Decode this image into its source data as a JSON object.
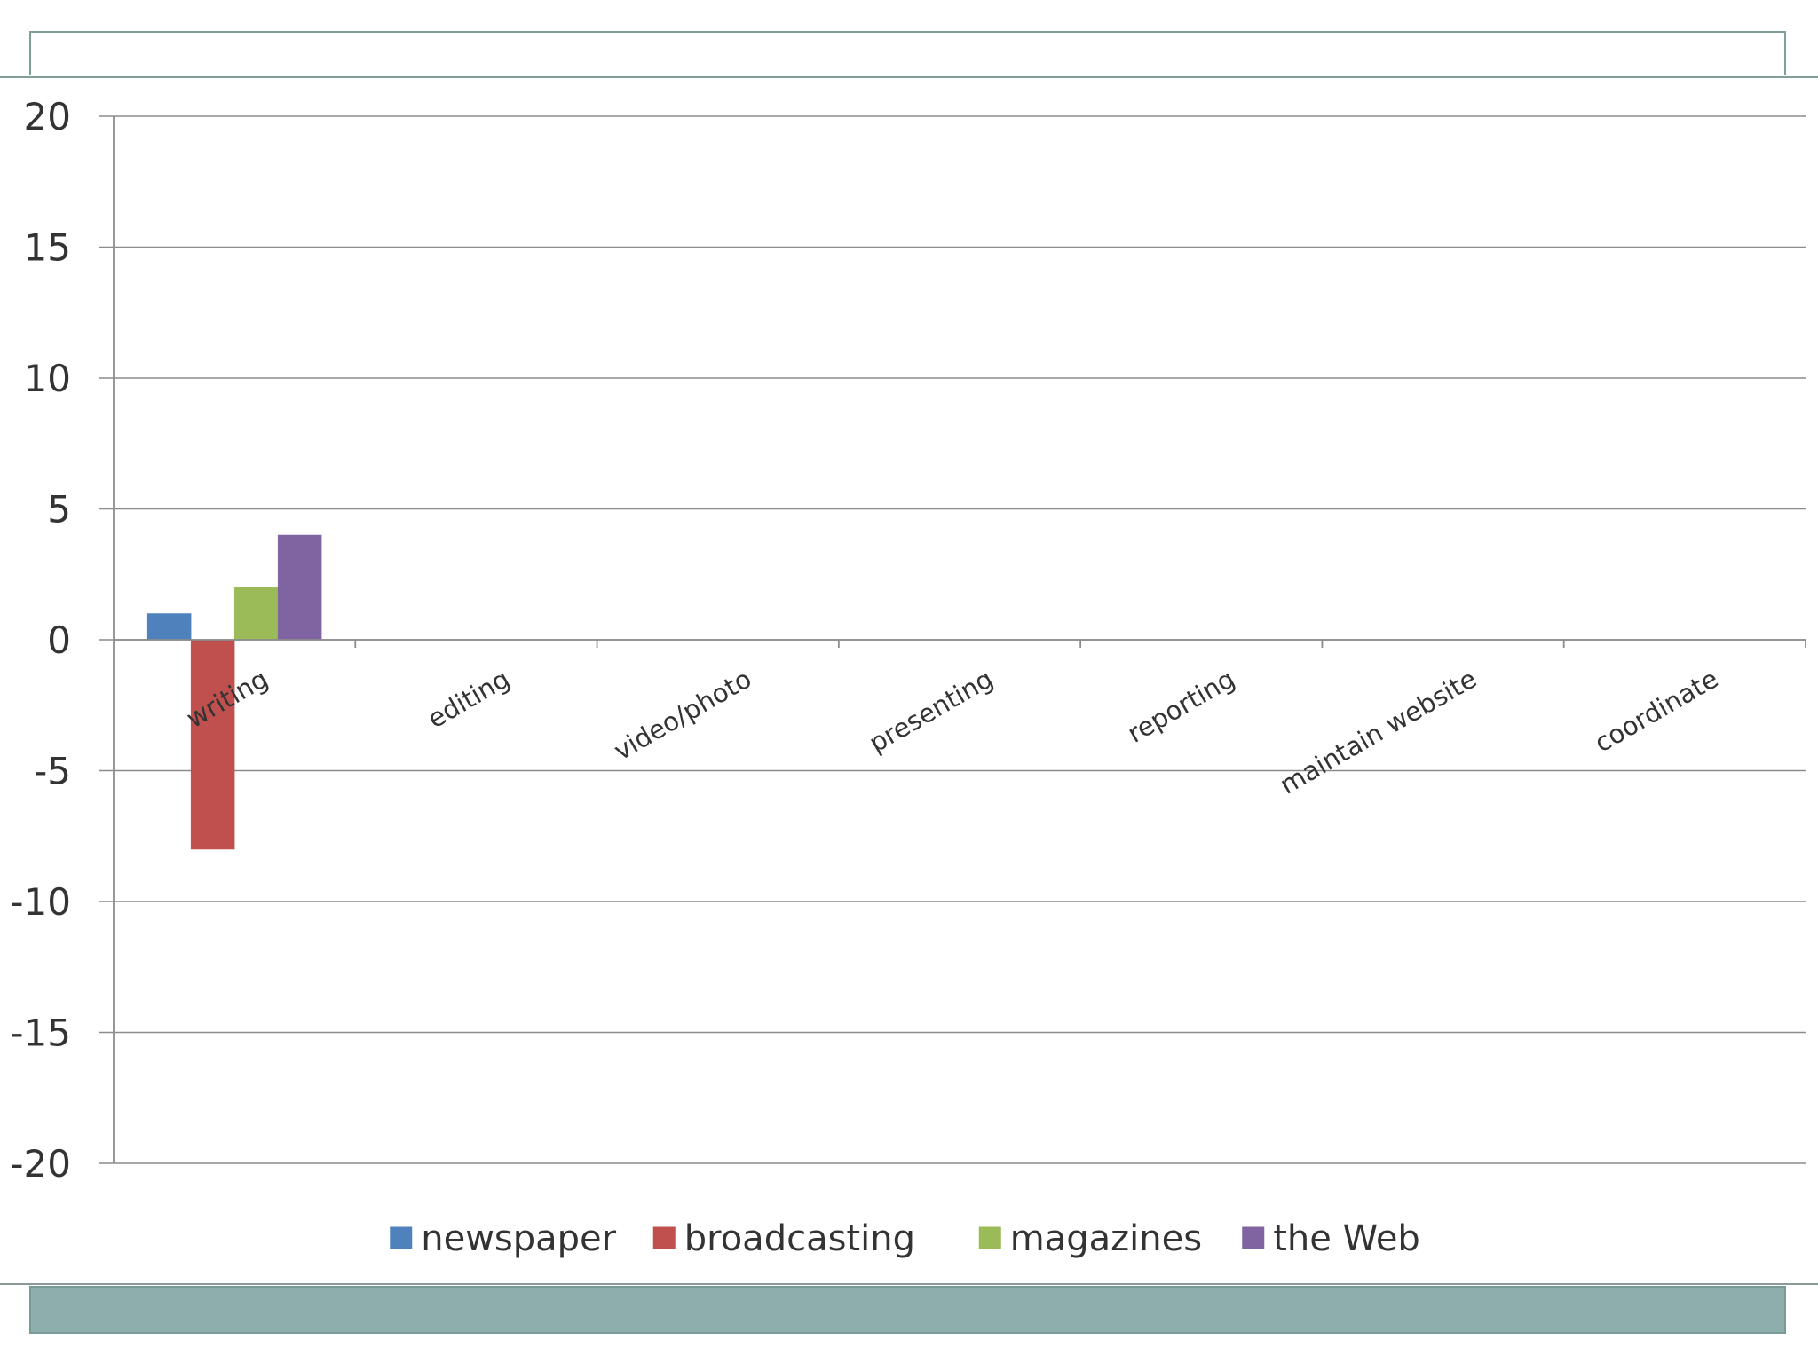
{
  "chart_data": {
    "type": "bar",
    "title": "",
    "xlabel": "",
    "ylabel": "",
    "ylim": [
      -20,
      20
    ],
    "y_ticks": [
      20,
      15,
      10,
      5,
      0,
      -5,
      -10,
      -15,
      -20
    ],
    "y_tick_labels": [
      "20",
      "15",
      "10",
      "5",
      "0",
      "-5",
      "-10",
      "-15",
      "-20"
    ],
    "grid": true,
    "legend_position": "bottom",
    "categories": [
      "writing",
      "editing",
      "video/photo",
      "presenting",
      "reporting",
      "maintain website",
      "coordinate"
    ],
    "series": [
      {
        "name": "newspaper",
        "color": "#4f81bd",
        "values": [
          1,
          null,
          null,
          null,
          null,
          null,
          null
        ]
      },
      {
        "name": "broadcasting",
        "color": "#c0504d",
        "values": [
          -8,
          null,
          null,
          null,
          null,
          null,
          null
        ]
      },
      {
        "name": "magazines",
        "color": "#9bbb59",
        "values": [
          2,
          null,
          null,
          null,
          null,
          null,
          null
        ]
      },
      {
        "name": "the Web",
        "color": "#8064a2",
        "values": [
          4,
          null,
          null,
          null,
          null,
          null,
          null
        ]
      }
    ]
  }
}
